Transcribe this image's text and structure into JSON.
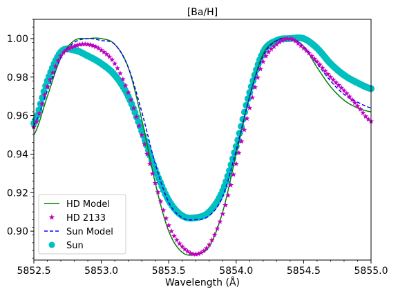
{
  "chart_data": {
    "type": "line",
    "title": "[Ba/H]",
    "xlabel": "Wavelength (Å)",
    "ylabel": "",
    "xlim": [
      5852.5,
      5855.0
    ],
    "ylim": [
      0.885,
      1.01
    ],
    "x_ticks": [
      5852.5,
      5853.0,
      5853.5,
      5854.0,
      5854.5,
      5855.0
    ],
    "x_tick_labels": [
      "5852.5",
      "5853.0",
      "5853.5",
      "5854.0",
      "5854.5",
      "5855.0"
    ],
    "y_ticks": [
      0.9,
      0.92,
      0.94,
      0.96,
      0.98,
      1.0
    ],
    "y_tick_labels": [
      "0.90",
      "0.92",
      "0.94",
      "0.96",
      "0.98",
      "1.00"
    ],
    "grid": false,
    "legend_position": "lower-left",
    "series": [
      {
        "name": "HD Model",
        "style": "solid-line",
        "color": "#008000",
        "x": [
          5852.5,
          5852.6,
          5852.7,
          5852.8,
          5852.9,
          5853.0,
          5853.1,
          5853.2,
          5853.3,
          5853.4,
          5853.5,
          5853.6,
          5853.7,
          5853.8,
          5853.9,
          5854.0,
          5854.1,
          5854.2,
          5854.3,
          5854.4,
          5854.5,
          5854.6,
          5854.7,
          5854.8,
          5854.9,
          5855.0
        ],
        "y": [
          0.95,
          0.97,
          0.99,
          0.999,
          1.0,
          1.0,
          0.997,
          0.985,
          0.958,
          0.925,
          0.9,
          0.889,
          0.888,
          0.892,
          0.91,
          0.94,
          0.97,
          0.992,
          0.999,
          1.0,
          0.996,
          0.985,
          0.975,
          0.968,
          0.964,
          0.962
        ]
      },
      {
        "name": "HD 2133",
        "style": "star-markers",
        "color": "#bf00bf",
        "x": [
          5852.5,
          5852.6,
          5852.7,
          5852.8,
          5852.9,
          5853.0,
          5853.1,
          5853.2,
          5853.3,
          5853.4,
          5853.5,
          5853.6,
          5853.7,
          5853.8,
          5853.9,
          5854.0,
          5854.1,
          5854.2,
          5854.3,
          5854.4,
          5854.5,
          5854.6,
          5854.7,
          5854.8,
          5854.9,
          5855.0
        ],
        "y": [
          0.954,
          0.975,
          0.991,
          0.996,
          0.997,
          0.994,
          0.987,
          0.972,
          0.95,
          0.925,
          0.903,
          0.892,
          0.888,
          0.893,
          0.909,
          0.935,
          0.964,
          0.988,
          0.997,
          1.0,
          0.995,
          0.988,
          0.98,
          0.973,
          0.965,
          0.957
        ]
      },
      {
        "name": "Sun Model",
        "style": "dashed-line",
        "color": "#0000ff",
        "x": [
          5852.5,
          5852.6,
          5852.7,
          5852.8,
          5852.9,
          5853.0,
          5853.1,
          5853.2,
          5853.3,
          5853.4,
          5853.5,
          5853.6,
          5853.7,
          5853.8,
          5853.9,
          5854.0,
          5854.1,
          5854.2,
          5854.3,
          5854.4,
          5854.5,
          5854.6,
          5854.7,
          5854.8,
          5854.9,
          5855.0
        ],
        "y": [
          0.955,
          0.973,
          0.99,
          0.998,
          1.0,
          0.999,
          0.997,
          0.985,
          0.962,
          0.935,
          0.915,
          0.907,
          0.906,
          0.908,
          0.918,
          0.942,
          0.97,
          0.991,
          0.999,
          1.0,
          0.996,
          0.987,
          0.978,
          0.971,
          0.967,
          0.964
        ]
      },
      {
        "name": "Sun",
        "style": "circle-markers",
        "color": "#00bfbf",
        "x": [
          5852.5,
          5852.6,
          5852.7,
          5852.8,
          5852.9,
          5853.0,
          5853.1,
          5853.2,
          5853.3,
          5853.4,
          5853.5,
          5853.6,
          5853.7,
          5853.8,
          5853.9,
          5854.0,
          5854.1,
          5854.2,
          5854.3,
          5854.4,
          5854.5,
          5854.6,
          5854.7,
          5854.8,
          5854.9,
          5855.0
        ],
        "y": [
          0.956,
          0.978,
          0.993,
          0.994,
          0.991,
          0.987,
          0.981,
          0.97,
          0.952,
          0.932,
          0.916,
          0.908,
          0.907,
          0.91,
          0.921,
          0.944,
          0.972,
          0.993,
          0.999,
          1.0,
          1.0,
          0.995,
          0.987,
          0.981,
          0.977,
          0.974
        ]
      }
    ]
  }
}
